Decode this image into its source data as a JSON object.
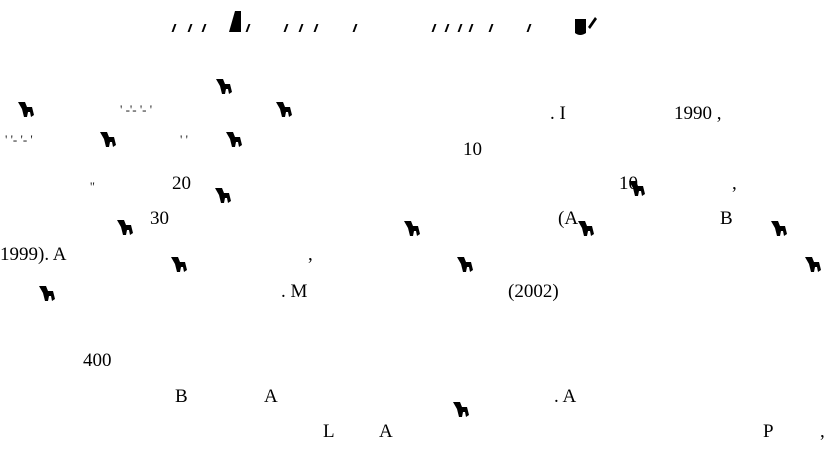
{
  "body": {
    "line1_right": ". I",
    "line1_year": "1990 ,",
    "line2_num": "10",
    "line3_num": "20",
    "line3_num2": "10",
    "line3_comma": ",",
    "line4_num": "30",
    "line4_paren": "(A",
    "line4_b": "B",
    "line5_start": "1999). A",
    "line5_comma": ",",
    "line6_m": ". M",
    "line6_year": "(2002)",
    "line8_num": "400",
    "line9_b": "B",
    "line9_a": "A",
    "line9_a2": ". A",
    "line10_l": "L",
    "line10_a": "A",
    "line10_p": "P",
    "line10_comma": ","
  }
}
